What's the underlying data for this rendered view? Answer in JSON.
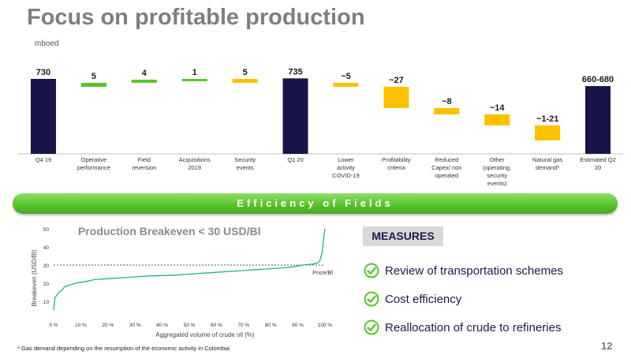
{
  "title": "Focus on profitable production",
  "waterfall": {
    "unit": "mboed",
    "colors": {
      "total": "#16144a",
      "up": "#58c42b",
      "down": "#ffc000",
      "estimate": "#16144a"
    },
    "bars": [
      {
        "category": "Q4 19",
        "label": "730",
        "kind": "total",
        "from": 0,
        "to": 730
      },
      {
        "category": "Operative performance",
        "label": "5",
        "kind": "up",
        "from": 730,
        "to": 735
      },
      {
        "category": "Field reversion",
        "label": "4",
        "kind": "up",
        "from": 735,
        "to": 739
      },
      {
        "category": "Acquisitions 2019",
        "label": "1",
        "kind": "up",
        "from": 739,
        "to": 740
      },
      {
        "category": "Security events",
        "label": "5",
        "kind": "down",
        "from": 740,
        "to": 735
      },
      {
        "category": "Q1 20",
        "label": "735",
        "kind": "total",
        "from": 0,
        "to": 735
      },
      {
        "category": "Lower activity COVID-19",
        "label": "~5",
        "kind": "down",
        "from": 735,
        "to": 730
      },
      {
        "category": "Profitability criteria",
        "label": "~27",
        "kind": "down",
        "from": 730,
        "to": 703
      },
      {
        "category": "Reduced Capex/ non operated",
        "label": "~8",
        "kind": "down",
        "from": 703,
        "to": 695
      },
      {
        "category": "Other (operating, security events)",
        "label": "~14",
        "kind": "down",
        "from": 695,
        "to": 681
      },
      {
        "category": "Natural gas demand*",
        "label": "~1-21",
        "kind": "down",
        "from": 681,
        "to": 662
      },
      {
        "category": "Estimated Q2 20",
        "label": "660-680",
        "kind": "estimate",
        "from": 0,
        "to": 660
      }
    ]
  },
  "banner": "Efficiency of Fields",
  "chart_data": {
    "type": "line",
    "title": "Production Breakeven < 30 USD/Bl",
    "xlabel": "Aggregated volume of crude oil (%)",
    "ylabel": "Breakeven (USD/Bl)",
    "xticks": [
      "0 %",
      "10 %",
      "20 %",
      "30 %",
      "40 %",
      "50 %",
      "60 %",
      "70 %",
      "80 %",
      "90 %",
      "100 %"
    ],
    "yticks": [
      "10",
      "20",
      "30",
      "40",
      "50"
    ],
    "ylim": [
      0,
      50
    ],
    "xlim": [
      0,
      100
    ],
    "reference_line": {
      "label": "Price/Bl",
      "y": 30
    },
    "line_color": "#20b28a",
    "x": [
      0,
      0.5,
      1,
      2,
      3,
      4,
      6,
      8,
      10,
      12,
      15,
      20,
      25,
      30,
      35,
      40,
      45,
      50,
      55,
      60,
      65,
      70,
      75,
      80,
      85,
      88,
      90,
      92,
      95,
      97,
      98,
      99,
      99.5,
      100
    ],
    "y": [
      5,
      12,
      13,
      15,
      16,
      18,
      19,
      20,
      20.5,
      21,
      22,
      22.5,
      23,
      23.5,
      24,
      24.2,
      24.5,
      25,
      25.5,
      26,
      26.5,
      27,
      27.5,
      28,
      28.5,
      29,
      29.5,
      30,
      30.5,
      31,
      32,
      37,
      45,
      50
    ]
  },
  "measures": {
    "title": "MEASURES",
    "items": [
      "Review of transportation schemes",
      "Cost efficiency",
      "Reallocation of crude to refineries"
    ]
  },
  "footnote": "* Gas demand depending on the resumption of the economic activity in Colombia",
  "page_number": "12"
}
